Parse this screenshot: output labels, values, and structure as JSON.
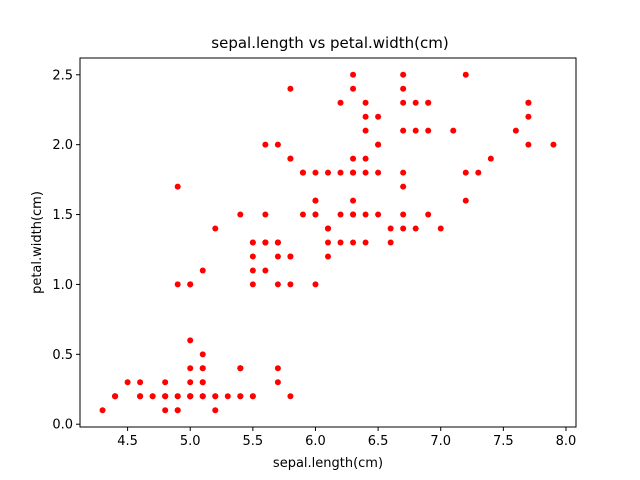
{
  "chart_data": {
    "type": "scatter",
    "title": "sepal.length vs petal.width(cm)",
    "xlabel": "sepal.length(cm)",
    "ylabel": "petal.width(cm)",
    "xlim": [
      4.12,
      8.08
    ],
    "ylim": [
      -0.02,
      2.62
    ],
    "xticks": [
      4.5,
      5.0,
      5.5,
      6.0,
      6.5,
      7.0,
      7.5,
      8.0
    ],
    "xtick_labels": [
      "4.5",
      "5.0",
      "5.5",
      "6.0",
      "6.5",
      "7.0",
      "7.5",
      "8.0"
    ],
    "yticks": [
      0.0,
      0.5,
      1.0,
      1.5,
      2.0,
      2.5
    ],
    "ytick_labels": [
      "0.0",
      "0.5",
      "1.0",
      "1.5",
      "2.0",
      "2.5"
    ],
    "grid": false,
    "marker_color": "#ff0000",
    "points": [
      [
        5.1,
        0.2
      ],
      [
        4.9,
        0.2
      ],
      [
        4.7,
        0.2
      ],
      [
        4.6,
        0.2
      ],
      [
        5.0,
        0.2
      ],
      [
        5.4,
        0.4
      ],
      [
        4.6,
        0.3
      ],
      [
        5.0,
        0.2
      ],
      [
        4.4,
        0.2
      ],
      [
        4.9,
        0.1
      ],
      [
        5.4,
        0.2
      ],
      [
        4.8,
        0.2
      ],
      [
        4.8,
        0.1
      ],
      [
        4.3,
        0.1
      ],
      [
        5.8,
        0.2
      ],
      [
        5.7,
        0.4
      ],
      [
        5.4,
        0.4
      ],
      [
        5.1,
        0.3
      ],
      [
        5.7,
        0.3
      ],
      [
        5.1,
        0.3
      ],
      [
        5.4,
        0.2
      ],
      [
        5.1,
        0.4
      ],
      [
        4.6,
        0.2
      ],
      [
        5.1,
        0.5
      ],
      [
        4.8,
        0.2
      ],
      [
        5.0,
        0.2
      ],
      [
        5.0,
        0.4
      ],
      [
        5.2,
        0.2
      ],
      [
        5.2,
        0.2
      ],
      [
        4.7,
        0.2
      ],
      [
        4.8,
        0.2
      ],
      [
        5.4,
        0.4
      ],
      [
        5.2,
        0.1
      ],
      [
        5.5,
        0.2
      ],
      [
        4.9,
        0.2
      ],
      [
        5.0,
        0.2
      ],
      [
        5.5,
        0.2
      ],
      [
        4.9,
        0.1
      ],
      [
        4.4,
        0.2
      ],
      [
        5.1,
        0.2
      ],
      [
        5.0,
        0.3
      ],
      [
        4.5,
        0.3
      ],
      [
        4.4,
        0.2
      ],
      [
        5.0,
        0.6
      ],
      [
        5.1,
        0.4
      ],
      [
        4.8,
        0.3
      ],
      [
        5.1,
        0.2
      ],
      [
        4.6,
        0.2
      ],
      [
        5.3,
        0.2
      ],
      [
        5.0,
        0.2
      ],
      [
        7.0,
        1.4
      ],
      [
        6.4,
        1.5
      ],
      [
        6.9,
        1.5
      ],
      [
        5.5,
        1.3
      ],
      [
        6.5,
        1.5
      ],
      [
        5.7,
        1.3
      ],
      [
        6.3,
        1.6
      ],
      [
        4.9,
        1.0
      ],
      [
        6.6,
        1.3
      ],
      [
        5.2,
        1.4
      ],
      [
        5.0,
        1.0
      ],
      [
        5.9,
        1.5
      ],
      [
        6.0,
        1.0
      ],
      [
        6.1,
        1.4
      ],
      [
        5.6,
        1.3
      ],
      [
        6.7,
        1.4
      ],
      [
        5.6,
        1.5
      ],
      [
        5.8,
        1.0
      ],
      [
        6.2,
        1.5
      ],
      [
        5.6,
        1.1
      ],
      [
        5.9,
        1.8
      ],
      [
        6.1,
        1.3
      ],
      [
        6.3,
        1.5
      ],
      [
        6.1,
        1.2
      ],
      [
        6.4,
        1.3
      ],
      [
        6.6,
        1.4
      ],
      [
        6.8,
        1.4
      ],
      [
        6.7,
        1.7
      ],
      [
        6.0,
        1.5
      ],
      [
        5.7,
        1.0
      ],
      [
        5.5,
        1.1
      ],
      [
        5.5,
        1.0
      ],
      [
        5.8,
        1.2
      ],
      [
        6.0,
        1.6
      ],
      [
        5.4,
        1.5
      ],
      [
        6.0,
        1.6
      ],
      [
        6.7,
        1.5
      ],
      [
        6.3,
        1.3
      ],
      [
        5.6,
        1.3
      ],
      [
        5.5,
        1.3
      ],
      [
        5.5,
        1.2
      ],
      [
        6.1,
        1.4
      ],
      [
        5.8,
        1.2
      ],
      [
        5.0,
        1.0
      ],
      [
        5.6,
        1.3
      ],
      [
        5.7,
        1.2
      ],
      [
        5.7,
        1.3
      ],
      [
        6.2,
        1.3
      ],
      [
        5.1,
        1.1
      ],
      [
        5.7,
        1.3
      ],
      [
        6.3,
        2.5
      ],
      [
        5.8,
        1.9
      ],
      [
        7.1,
        2.1
      ],
      [
        6.3,
        1.8
      ],
      [
        6.5,
        2.2
      ],
      [
        7.6,
        2.1
      ],
      [
        4.9,
        1.7
      ],
      [
        7.3,
        1.8
      ],
      [
        6.7,
        1.8
      ],
      [
        7.2,
        2.5
      ],
      [
        6.5,
        2.0
      ],
      [
        6.4,
        1.9
      ],
      [
        6.8,
        2.1
      ],
      [
        5.7,
        2.0
      ],
      [
        5.8,
        2.4
      ],
      [
        6.4,
        2.3
      ],
      [
        6.5,
        1.8
      ],
      [
        7.7,
        2.2
      ],
      [
        7.7,
        2.3
      ],
      [
        6.0,
        1.5
      ],
      [
        6.9,
        2.3
      ],
      [
        5.6,
        2.0
      ],
      [
        7.7,
        2.0
      ],
      [
        6.3,
        1.8
      ],
      [
        6.7,
        2.1
      ],
      [
        7.2,
        1.8
      ],
      [
        6.2,
        1.8
      ],
      [
        6.1,
        1.8
      ],
      [
        6.4,
        2.1
      ],
      [
        7.2,
        1.6
      ],
      [
        7.4,
        1.9
      ],
      [
        7.9,
        2.0
      ],
      [
        6.4,
        2.2
      ],
      [
        6.3,
        1.5
      ],
      [
        6.1,
        1.4
      ],
      [
        7.7,
        2.3
      ],
      [
        6.3,
        2.4
      ],
      [
        6.4,
        1.8
      ],
      [
        6.0,
        1.8
      ],
      [
        6.9,
        2.1
      ],
      [
        6.7,
        2.4
      ],
      [
        6.9,
        2.3
      ],
      [
        5.8,
        1.9
      ],
      [
        6.8,
        2.3
      ],
      [
        6.7,
        2.5
      ],
      [
        6.7,
        2.3
      ],
      [
        6.3,
        1.9
      ],
      [
        6.5,
        2.0
      ],
      [
        6.2,
        2.3
      ],
      [
        5.9,
        1.8
      ]
    ]
  }
}
